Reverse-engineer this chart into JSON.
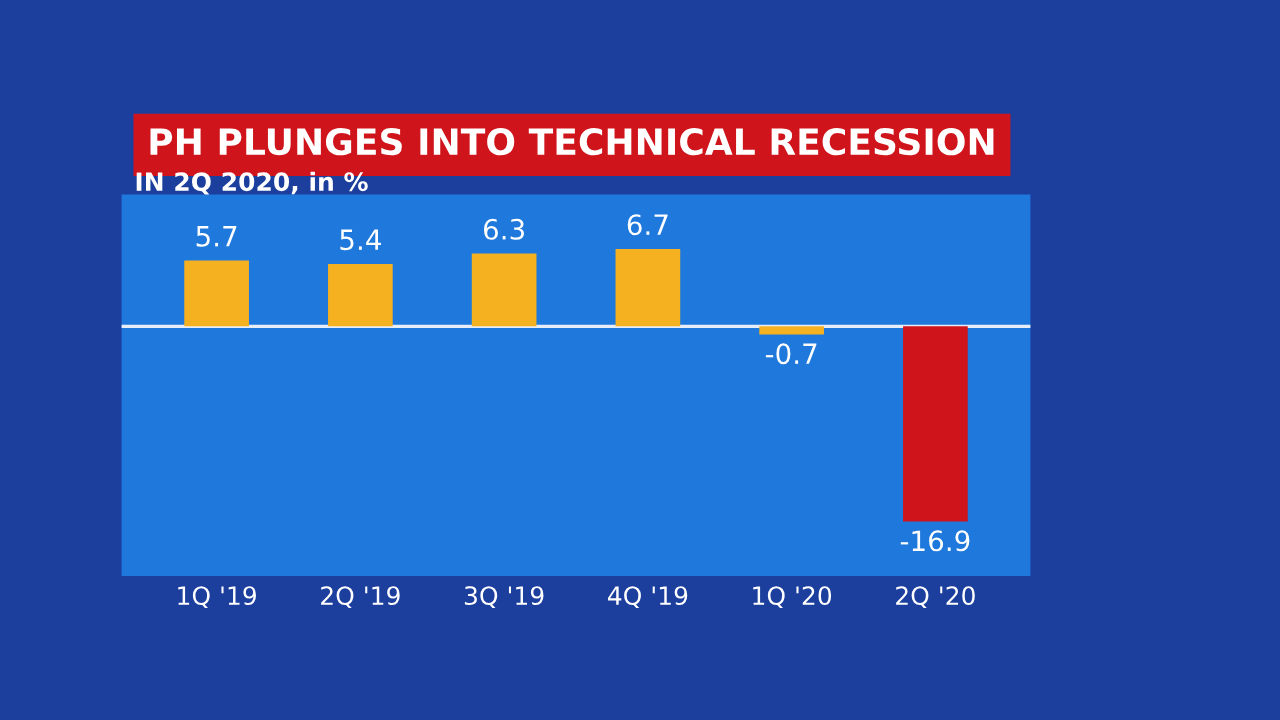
{
  "chart_data": {
    "type": "bar",
    "title": "PH PLUNGES INTO TECHNICAL RECESSION",
    "subtitle": "IN 2Q 2020, in %",
    "categories": [
      "1Q '19",
      "2Q '19",
      "3Q '19",
      "4Q '19",
      "1Q '20",
      "2Q '20"
    ],
    "values": [
      5.7,
      5.4,
      6.3,
      6.7,
      -0.7,
      -16.9
    ],
    "colors": [
      "#f5b120",
      "#f5b120",
      "#f5b120",
      "#f5b120",
      "#f5b120",
      "#d0141c"
    ],
    "data_labels": true,
    "ref_lines": [
      {
        "axis": "y",
        "value": 0,
        "color": "#e8eef8"
      }
    ],
    "tick_labels": "x",
    "grid": false
  }
}
